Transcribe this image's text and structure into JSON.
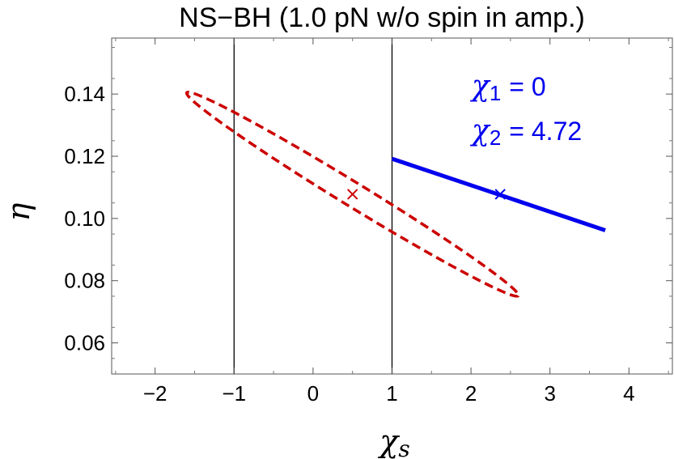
{
  "chart_data": {
    "type": "line",
    "title": "NS−BH (1.0 pN w/o spin in amp.)",
    "xlabel": "χ",
    "xlabel_sub": "s",
    "ylabel": "η",
    "xlim": [
      -2.55,
      4.55
    ],
    "ylim": [
      0.05,
      0.158
    ],
    "xticks": [
      -2,
      -1,
      0,
      1,
      2,
      3,
      4
    ],
    "xtick_labels": [
      "−2",
      "−1",
      "0",
      "1",
      "2",
      "3",
      "4"
    ],
    "yticks": [
      0.06,
      0.08,
      0.1,
      0.12,
      0.14
    ],
    "ytick_labels": [
      "0.06",
      "0.08",
      "0.10",
      "0.12",
      "0.14"
    ],
    "grid": false,
    "vertical_lines": [
      -1,
      1
    ],
    "ellipse": {
      "color": "#cc0000",
      "style": "dashed",
      "center": [
        0.5,
        0.1078
      ],
      "endpoint_a": [
        -1.6,
        0.1405
      ],
      "endpoint_b": [
        2.6,
        0.0752
      ],
      "half_width_eta": 0.0045
    },
    "segment": {
      "color": "#0000ee",
      "start": [
        1.0,
        0.1192
      ],
      "end": [
        3.7,
        0.0962
      ]
    },
    "markers": [
      {
        "x": 0.5,
        "y": 0.1078,
        "color": "#cc0000"
      },
      {
        "x": 2.37,
        "y": 0.1078,
        "color": "#0000ee"
      }
    ],
    "annotations": [
      {
        "symbol": "χ",
        "sub": "1",
        "value": "= 0"
      },
      {
        "symbol": "χ",
        "sub": "2",
        "value": "= 4.72"
      }
    ],
    "annotation_color": "#0000ee"
  }
}
